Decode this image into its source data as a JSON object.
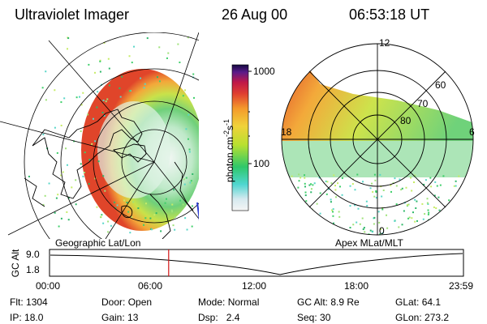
{
  "header": {
    "instrument": "Ultraviolet Imager",
    "date": "26 Aug 00",
    "time": "06:53:18 UT"
  },
  "colorbar": {
    "unit_label": "photon cm",
    "unit_sup1": "-2",
    "unit_mid": "s",
    "unit_sup2": "-1",
    "ticks": [
      "1000",
      "100"
    ],
    "scale": "log",
    "range": [
      20,
      1200
    ]
  },
  "left_panel": {
    "caption": "Geographic Lat/Lon"
  },
  "right_panel": {
    "caption": "Apex MLat/MLT",
    "mlt_labels": [
      "12",
      "18",
      "6",
      "0"
    ],
    "mlat_labels": [
      "60",
      "70",
      "80"
    ]
  },
  "timeline": {
    "ylabel": "GC Alt",
    "yticks": [
      "9.0",
      "1.8"
    ],
    "xticks": [
      "00:00",
      "06:00",
      "12:00",
      "18:00",
      "23:59"
    ],
    "marker_time_hours": 6.888
  },
  "info": {
    "row1": [
      {
        "label": "Flt:",
        "value": "1304"
      },
      {
        "label": "Door:",
        "value": "Open"
      },
      {
        "label": "Mode:",
        "value": "Normal"
      },
      {
        "label": "GC Alt:",
        "value": "8.9 Re"
      },
      {
        "label": "GLat:",
        "value": "64.1"
      }
    ],
    "row2": [
      {
        "label": "IP:",
        "value": "18.0"
      },
      {
        "label": "Gain:",
        "value": "13"
      },
      {
        "label": "Dsp:",
        "value": "2.4"
      },
      {
        "label": "Seq:",
        "value": "30"
      },
      {
        "label": "GLon:",
        "value": "273.2"
      }
    ]
  },
  "colors": {
    "marker": "#d21414",
    "text": "#000000"
  }
}
